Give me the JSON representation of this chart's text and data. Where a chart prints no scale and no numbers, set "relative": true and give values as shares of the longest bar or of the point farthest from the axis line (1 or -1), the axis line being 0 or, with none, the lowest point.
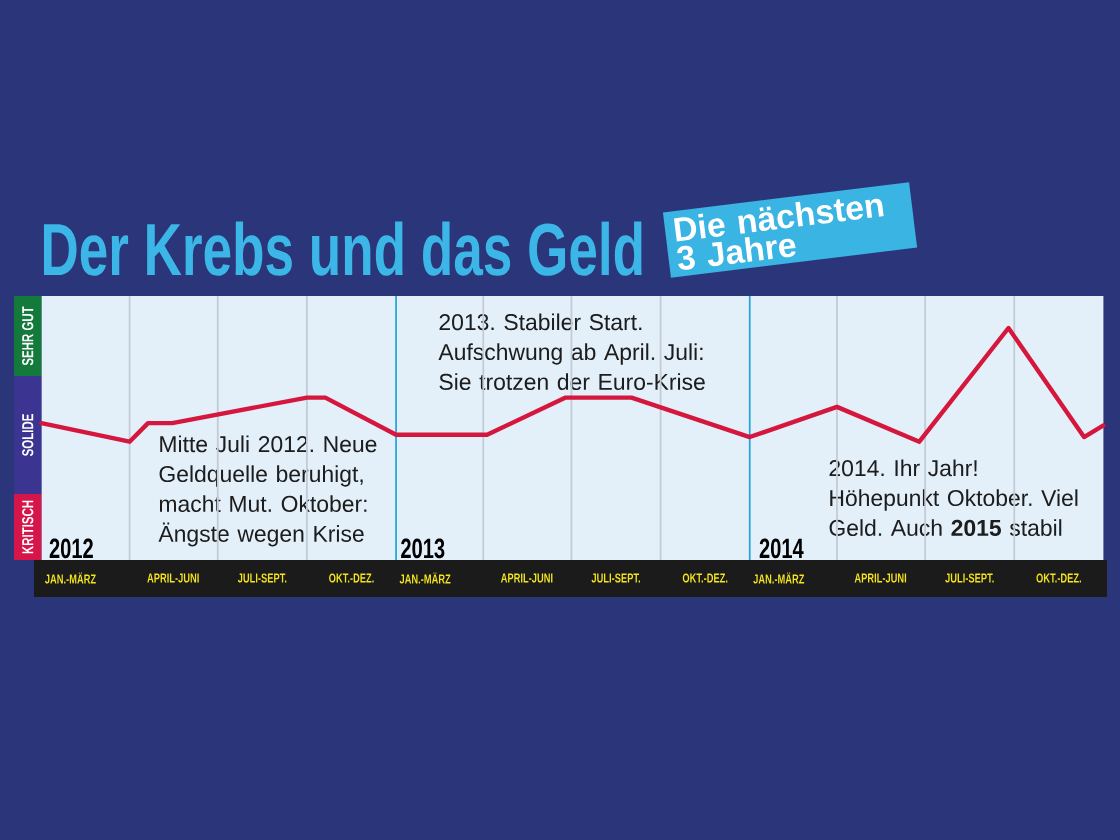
{
  "chart_data": {
    "type": "line",
    "title": "Der Krebs und das Geld",
    "subtitle": "Die nächsten 3 Jahre",
    "x": [
      "2012-01-01",
      "2012-04-01",
      "2012-04-20",
      "2012-05-15",
      "2012-10-01",
      "2012-10-20",
      "2013-01-01",
      "2013-04-05",
      "2013-06-25",
      "2013-09-01",
      "2014-01-01",
      "2014-04-01",
      "2014-06-25",
      "2014-09-25",
      "2014-12-12",
      "2015-01-01"
    ],
    "values": [
      0.59,
      0.51,
      0.59,
      0.59,
      0.7,
      0.7,
      0.54,
      0.54,
      0.7,
      0.7,
      0.53,
      0.66,
      0.51,
      1,
      0.53,
      0.58
    ],
    "color": "#d5173e",
    "relative": true,
    "xlim": [
      "2012-01-01",
      "2015-01-01"
    ],
    "xticks": [
      {
        "value": "2012-01-31",
        "label": "JAN.-MÄRZ"
      },
      {
        "value": "2012-05-16",
        "label": "APRIL-JUNI"
      },
      {
        "value": "2012-08-16",
        "label": "JULI-SEPT."
      },
      {
        "value": "2012-11-16",
        "label": "OKT.-DEZ."
      },
      {
        "value": "2013-01-31",
        "label": "JAN.-MÄRZ"
      },
      {
        "value": "2013-05-16",
        "label": "APRIL-JUNI"
      },
      {
        "value": "2013-08-16",
        "label": "JULI-SEPT."
      },
      {
        "value": "2013-11-16",
        "label": "OKT.-DEZ."
      },
      {
        "value": "2014-01-31",
        "label": "JAN.-MÄRZ"
      },
      {
        "value": "2014-05-16",
        "label": "APRIL-JUNI"
      },
      {
        "value": "2014-08-16",
        "label": "JULI-SEPT."
      },
      {
        "value": "2014-11-16",
        "label": "OKT.-DEZ."
      }
    ],
    "ref_lines": [
      {
        "axis": "x",
        "value": "2012-04-01",
        "color": "#c3cbd5"
      },
      {
        "axis": "x",
        "value": "2012-07-01",
        "color": "#c3cbd5"
      },
      {
        "axis": "x",
        "value": "2012-10-01",
        "color": "#c3cbd5"
      },
      {
        "axis": "x",
        "value": "2013-01-01",
        "color": "#2ba6dc"
      },
      {
        "axis": "x",
        "value": "2013-04-01",
        "color": "#c3cbd5"
      },
      {
        "axis": "x",
        "value": "2013-07-01",
        "color": "#c3cbd5"
      },
      {
        "axis": "x",
        "value": "2013-10-01",
        "color": "#c3cbd5"
      },
      {
        "axis": "x",
        "value": "2014-01-01",
        "color": "#2ba6dc"
      },
      {
        "axis": "x",
        "value": "2014-04-01",
        "color": "#c3cbd5"
      },
      {
        "axis": "x",
        "value": "2014-07-01",
        "color": "#c3cbd5"
      },
      {
        "axis": "x",
        "value": "2014-10-01",
        "color": "#c3cbd5"
      }
    ],
    "annotations": [
      "SEHR GUT",
      "SOLIDE",
      "KRITISCH",
      "2012",
      "Mitte Juli 2012. Neue Geldquelle beruhigt, macht Mut. Oktober: Ängste wegen Krise",
      "2013",
      "2013. Stabiler Start. Aufschwung ab April. Juli: Sie trotzen der Euro-Krise",
      "2014",
      "2014. Ihr Jahr! Höhepunkt Oktober. Viel Geld. Auch **2015** stabil"
    ]
  }
}
